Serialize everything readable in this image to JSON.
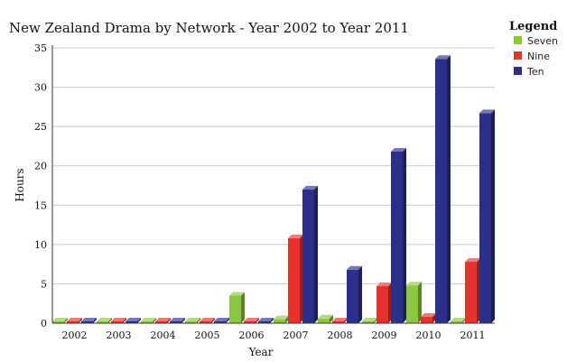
{
  "chart_data": {
    "type": "bar",
    "title": "New Zealand Drama by Network - Year 2002 to Year 2011",
    "xlabel": "Year",
    "ylabel": "Hours",
    "ylim": [
      0,
      35
    ],
    "yticks": [
      0,
      5,
      10,
      15,
      20,
      25,
      30,
      35
    ],
    "grid": true,
    "legend_title": "Legend",
    "legend_position": "top-right",
    "categories": [
      "2002",
      "2003",
      "2004",
      "2005",
      "2006",
      "2007",
      "2008",
      "2009",
      "2010",
      "2011"
    ],
    "series": [
      {
        "name": "Seven",
        "color": "#8dc63f",
        "values": [
          0,
          0,
          0,
          0,
          3.5,
          0.5,
          0.6,
          0,
          4.8,
          0
        ]
      },
      {
        "name": "Nine",
        "color": "#e8312c",
        "values": [
          0,
          0,
          0,
          0,
          0,
          10.8,
          0,
          4.7,
          0.8,
          7.8
        ]
      },
      {
        "name": "Ten",
        "color": "#2b2f8c",
        "values": [
          0,
          0,
          0,
          0,
          0,
          17,
          6.8,
          21.8,
          33.6,
          26.7
        ]
      }
    ]
  }
}
